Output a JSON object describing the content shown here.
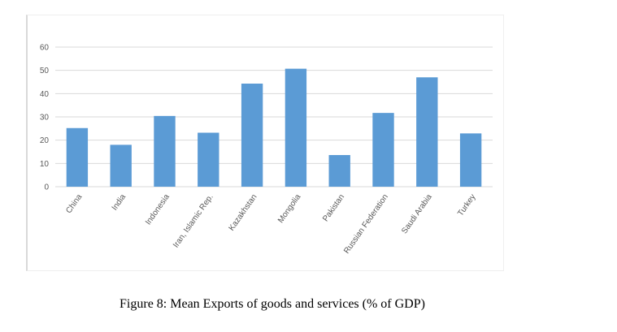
{
  "caption": "Figure 8: Mean Exports of goods and services (% of GDP)",
  "chart_data": {
    "type": "bar",
    "categories": [
      "China",
      "India",
      "Indonesia",
      "Iran, Islamic Rep.",
      "Kazakhstan",
      "Mongolia",
      "Pakistan",
      "Russian Federation",
      "Saudi Arabia",
      "Turkey"
    ],
    "values": [
      25.2,
      18.0,
      30.4,
      23.2,
      44.3,
      50.7,
      13.6,
      31.7,
      47.0,
      22.9
    ],
    "ylim": [
      0,
      60
    ],
    "yticks": [
      0,
      10,
      20,
      30,
      40,
      50,
      60
    ],
    "grid": true,
    "bar_color": "#5b9bd5",
    "grid_color": "#d9d9d9"
  }
}
